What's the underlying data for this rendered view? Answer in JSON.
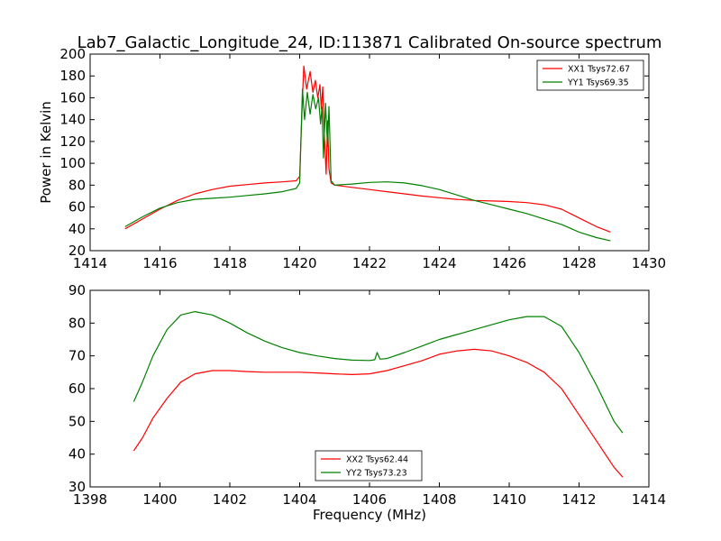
{
  "figure": {
    "title": "Lab7_Galactic_Longitude_24, ID:113871 Calibrated On-source spectrum"
  },
  "chart_data": [
    {
      "type": "line",
      "ylabel": "Power in Kelvin",
      "xlabel": "",
      "xlim": [
        1414,
        1430
      ],
      "ylim": [
        20,
        200
      ],
      "xticks": [
        1414,
        1416,
        1418,
        1420,
        1422,
        1424,
        1426,
        1428,
        1430
      ],
      "yticks": [
        20,
        40,
        60,
        80,
        100,
        120,
        140,
        160,
        180,
        200
      ],
      "grid": false,
      "legend_position": "top-right",
      "series": [
        {
          "name": "XX1 Tsys72.67",
          "color": "#ff0000",
          "x": [
            1415,
            1415.5,
            1416,
            1416.5,
            1417,
            1417.5,
            1418,
            1418.5,
            1419,
            1419.5,
            1419.9,
            1420.0,
            1420.08,
            1420.12,
            1420.2,
            1420.3,
            1420.38,
            1420.45,
            1420.52,
            1420.58,
            1420.62,
            1420.66,
            1420.7,
            1420.76,
            1420.8,
            1420.84,
            1420.9,
            1421.0,
            1421.5,
            1422,
            1422.5,
            1423,
            1423.5,
            1424,
            1424.5,
            1425,
            1425.5,
            1426,
            1426.5,
            1427,
            1427.5,
            1428,
            1428.5,
            1428.9
          ],
          "y": [
            40,
            49,
            58,
            66,
            72,
            76,
            79,
            80.5,
            82,
            83,
            84,
            88,
            160,
            189,
            168,
            184,
            165,
            176,
            160,
            172,
            150,
            170,
            132,
            90,
            139,
            95,
            82,
            80,
            78,
            76,
            74,
            72,
            70,
            68.5,
            67,
            66,
            65.5,
            65,
            64,
            62,
            58,
            50,
            42,
            37
          ]
        },
        {
          "name": "YY1 Tsys69.35",
          "color": "#008000",
          "x": [
            1415,
            1415.5,
            1416,
            1416.5,
            1417,
            1417.5,
            1418,
            1418.5,
            1419,
            1419.5,
            1419.9,
            1420.0,
            1420.08,
            1420.14,
            1420.22,
            1420.3,
            1420.38,
            1420.46,
            1420.54,
            1420.6,
            1420.64,
            1420.68,
            1420.74,
            1420.8,
            1420.84,
            1420.9,
            1421.0,
            1421.5,
            1422,
            1422.5,
            1423,
            1423.5,
            1424,
            1424.5,
            1425,
            1425.5,
            1426,
            1426.5,
            1427,
            1427.5,
            1428,
            1428.5,
            1428.9
          ],
          "y": [
            42,
            51,
            59,
            64,
            67,
            68,
            69,
            70.5,
            72,
            74,
            77,
            82,
            168,
            140,
            165,
            145,
            163,
            150,
            160,
            136,
            152,
            105,
            155,
            115,
            152,
            84,
            80,
            81,
            82.5,
            83,
            82,
            79.5,
            76,
            71,
            66,
            62,
            58,
            54,
            49,
            44,
            37,
            32,
            29
          ]
        }
      ]
    },
    {
      "type": "line",
      "ylabel": "",
      "xlabel": "Frequency (MHz)",
      "xlim": [
        1398,
        1414
      ],
      "ylim": [
        30,
        90
      ],
      "xticks": [
        1398,
        1400,
        1402,
        1404,
        1406,
        1408,
        1410,
        1412,
        1414
      ],
      "yticks": [
        30,
        40,
        50,
        60,
        70,
        80,
        90
      ],
      "grid": false,
      "legend_position": "bottom-center",
      "series": [
        {
          "name": "XX2 Tsys62.44",
          "color": "#ff0000",
          "x": [
            1399.25,
            1399.5,
            1399.8,
            1400.2,
            1400.6,
            1401,
            1401.5,
            1402,
            1402.5,
            1403,
            1403.5,
            1404,
            1404.5,
            1405,
            1405.5,
            1406,
            1406.5,
            1407,
            1407.5,
            1408,
            1408.5,
            1409,
            1409.5,
            1410,
            1410.5,
            1411,
            1411.5,
            1412,
            1412.5,
            1413,
            1413.25
          ],
          "y": [
            41,
            45,
            51,
            57,
            62,
            64.5,
            65.5,
            65.5,
            65.2,
            65,
            65,
            65,
            64.8,
            64.5,
            64.3,
            64.5,
            65.5,
            67,
            68.5,
            70.5,
            71.5,
            72,
            71.5,
            70,
            68,
            65,
            60,
            52,
            44,
            36,
            33
          ]
        },
        {
          "name": "YY2 Tsys73.23",
          "color": "#008000",
          "x": [
            1399.25,
            1399.5,
            1399.8,
            1400.2,
            1400.6,
            1401,
            1401.5,
            1402,
            1402.5,
            1403,
            1403.5,
            1404,
            1404.5,
            1405,
            1405.5,
            1406,
            1406.15,
            1406.22,
            1406.3,
            1406.5,
            1407,
            1407.5,
            1408,
            1408.5,
            1409,
            1409.5,
            1410,
            1410.5,
            1411,
            1411.5,
            1412,
            1412.5,
            1413,
            1413.25
          ],
          "y": [
            56,
            62,
            70,
            78,
            82.5,
            83.5,
            82.5,
            80,
            77,
            74.5,
            72.5,
            71,
            70,
            69.2,
            68.7,
            68.6,
            68.8,
            71,
            69,
            69.2,
            71,
            73,
            75,
            76.5,
            78,
            79.5,
            81,
            82,
            82,
            79,
            71,
            61,
            50,
            46.5
          ]
        }
      ]
    }
  ]
}
